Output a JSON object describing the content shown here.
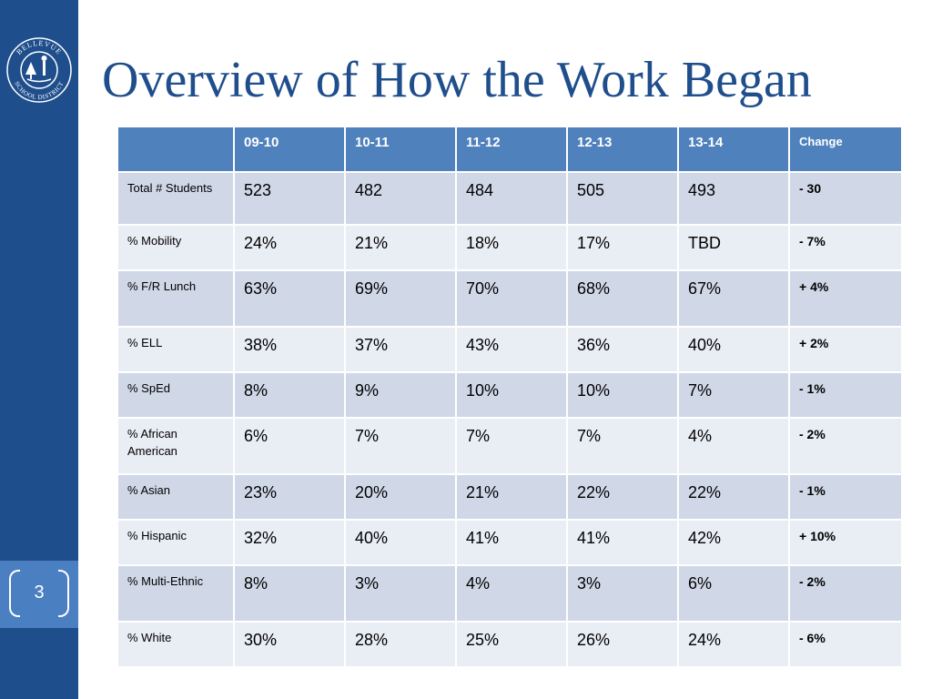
{
  "slide": {
    "title": "Overview of How the Work Began",
    "page_number": "3",
    "logo_text": "BELLEVUE SCHOOL DISTRICT"
  },
  "table": {
    "columns": [
      "",
      "09-10",
      "10-11",
      "11-12",
      "12-13",
      "13-14",
      "Change"
    ],
    "rows": [
      {
        "label": "Total # Students",
        "values": [
          "523",
          "482",
          "484",
          "505",
          "493"
        ],
        "change": "- 30",
        "change_sign": "neg"
      },
      {
        "label": "% Mobility",
        "values": [
          "24%",
          "21%",
          "18%",
          "17%",
          "TBD"
        ],
        "change": "- 7%",
        "change_sign": "neg"
      },
      {
        "label": "% F/R Lunch",
        "values": [
          "63%",
          "69%",
          "70%",
          "68%",
          "67%"
        ],
        "change": "+ 4%",
        "change_sign": "pos"
      },
      {
        "label": "% ELL",
        "values": [
          "38%",
          "37%",
          "43%",
          "36%",
          "40%"
        ],
        "change": "+ 2%",
        "change_sign": "pos"
      },
      {
        "label": "% SpEd",
        "values": [
          "8%",
          "9%",
          "10%",
          "10%",
          "7%"
        ],
        "change": "- 1%",
        "change_sign": "neg"
      },
      {
        "label": "% African American",
        "values": [
          "6%",
          "7%",
          "7%",
          "7%",
          "4%"
        ],
        "change": "- 2%",
        "change_sign": "neg"
      },
      {
        "label": "% Asian",
        "values": [
          "23%",
          "20%",
          "21%",
          "22%",
          "22%"
        ],
        "change": "- 1%",
        "change_sign": "neg"
      },
      {
        "label": "% Hispanic",
        "values": [
          "32%",
          "40%",
          "41%",
          "41%",
          "42%"
        ],
        "change": "+ 10%",
        "change_sign": "pos"
      },
      {
        "label": "% Multi-Ethnic",
        "values": [
          "8%",
          "3%",
          "4%",
          "3%",
          "6%"
        ],
        "change": "- 2%",
        "change_sign": "neg"
      },
      {
        "label": "% White",
        "values": [
          "30%",
          "28%",
          "25%",
          "26%",
          "24%"
        ],
        "change": "- 6%",
        "change_sign": "neg"
      }
    ]
  },
  "colors": {
    "sidebar": "#1f4e8c",
    "header": "#4f81bd",
    "negative": "#e31e24",
    "positive": "#00a650"
  }
}
